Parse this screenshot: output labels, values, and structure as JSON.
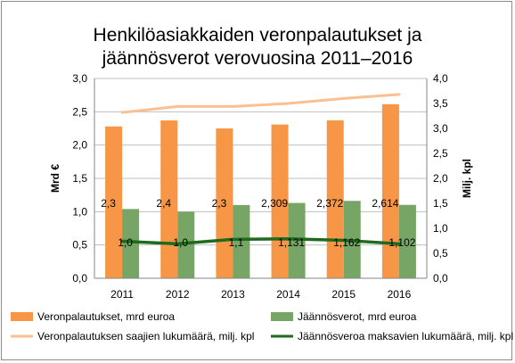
{
  "chart_data": {
    "type": "bar",
    "title_line1": "Henkilöasiakkaiden veronpalautukset ja",
    "title_line2": "jäännösverot verovuosina 2011–2016",
    "categories": [
      "2011",
      "2012",
      "2013",
      "2014",
      "2015",
      "2016"
    ],
    "y_left": {
      "label": "Mrd €",
      "range": [
        0,
        3.0
      ],
      "ticks": [
        "0,0",
        "0,5",
        "1,0",
        "1,5",
        "2,0",
        "2,5",
        "3,0"
      ]
    },
    "y_right": {
      "label": "Milj. kpl",
      "range": [
        0,
        4.0
      ],
      "ticks": [
        "0,0",
        "0,5",
        "1,0",
        "1,5",
        "2,0",
        "2,5",
        "3,0",
        "3,5",
        "4,0"
      ]
    },
    "series": [
      {
        "name": "Veronpalautukset, mrd euroa",
        "kind": "bar",
        "axis": "left",
        "color": "#F79646",
        "values": [
          2.28,
          2.37,
          2.25,
          2.309,
          2.372,
          2.614
        ],
        "labels": [
          "2,3",
          "2,4",
          "2,3",
          "2,309",
          "2,372",
          "2,614"
        ]
      },
      {
        "name": "Jäännösverot, mrd euroa",
        "kind": "bar",
        "axis": "left",
        "color": "#77A565",
        "values": [
          1.04,
          1.0,
          1.1,
          1.131,
          1.162,
          1.102
        ],
        "labels": [
          "1,0",
          "1,0",
          "1,1",
          "1,131",
          "1,162",
          "1,102"
        ]
      },
      {
        "name": "Veronpalautuksen saajien lukumäärä, milj. kpl",
        "kind": "line",
        "axis": "right",
        "color": "#FAC090",
        "values": [
          3.32,
          3.44,
          3.44,
          3.5,
          3.6,
          3.68
        ]
      },
      {
        "name": "Jäännösveroa maksavien lukumäärä, milj. kpl",
        "kind": "line",
        "axis": "right",
        "color": "#1E6B1E",
        "values": [
          0.74,
          0.69,
          0.78,
          0.79,
          0.76,
          0.69
        ]
      }
    ],
    "grid": true,
    "legend_position": "bottom"
  }
}
